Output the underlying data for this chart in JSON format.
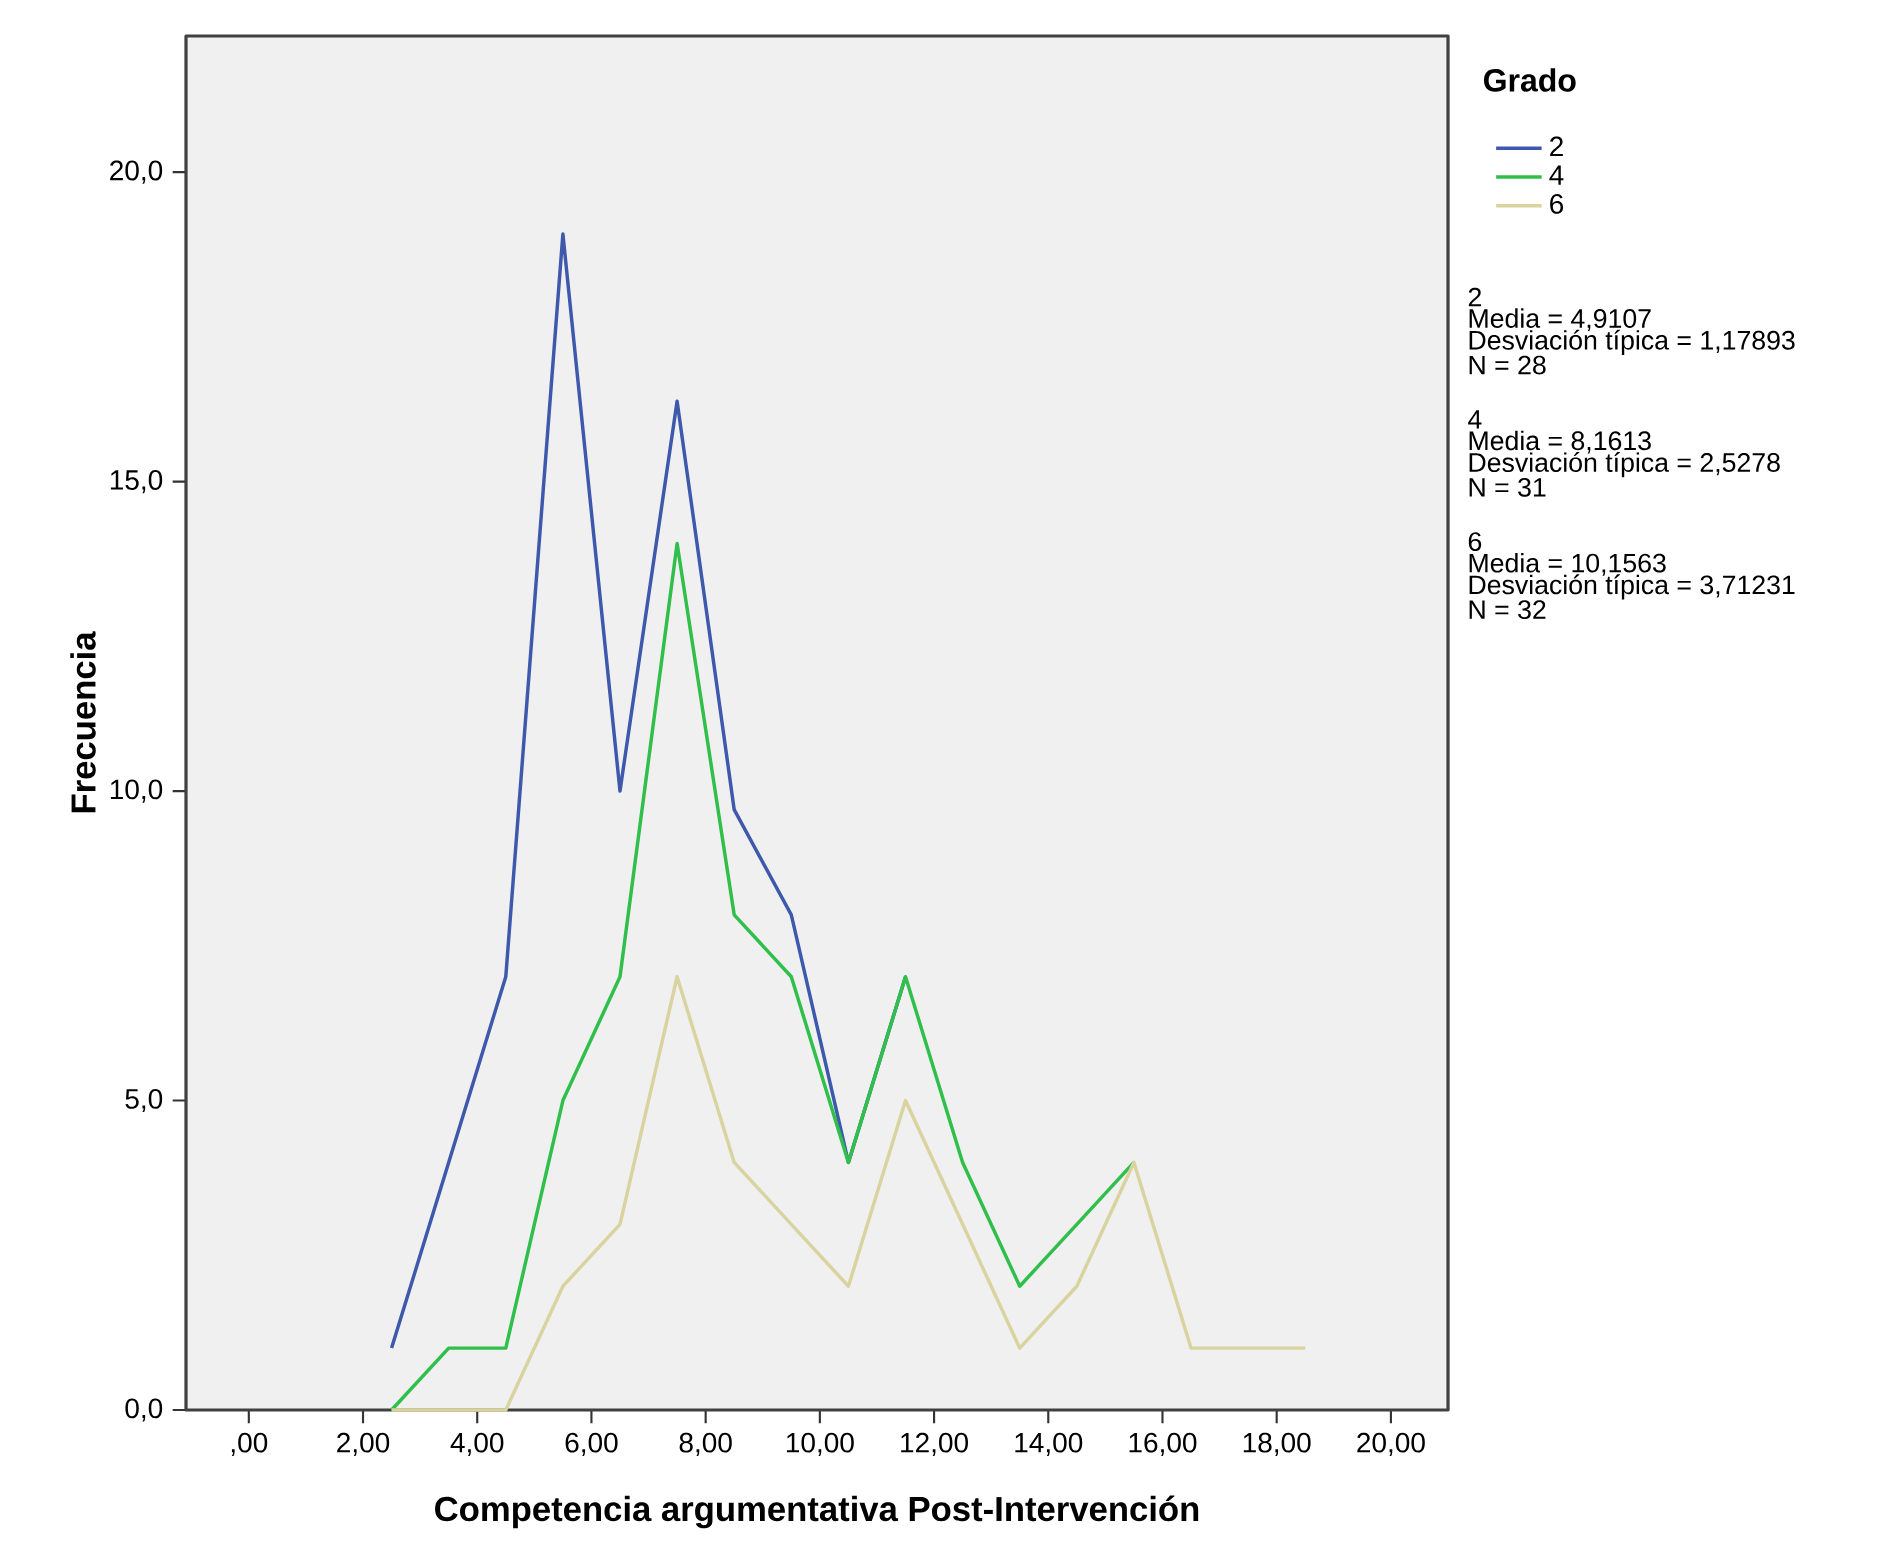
{
  "chart_data": {
    "type": "line",
    "xlabel": "Competencia argumentativa Post-Intervención",
    "ylabel": "Frecuencia",
    "legend_title": "Grado",
    "x": [
      2.5,
      3.5,
      4.5,
      5.5,
      6.5,
      7.5,
      8.5,
      9.5,
      10.5,
      11.5,
      12.5,
      13.5,
      14.5,
      15.5,
      16.5,
      17.5,
      18.5
    ],
    "series": [
      {
        "name": "2",
        "color": "#3e58ac",
        "values": [
          1,
          4,
          7,
          19,
          10,
          16.3,
          9.7,
          8,
          4,
          7,
          null,
          null,
          null,
          null,
          null,
          null,
          null
        ]
      },
      {
        "name": "4",
        "color": "#2fbf4a",
        "values": [
          0,
          1,
          1,
          5,
          7,
          14,
          8,
          7,
          4,
          7,
          4,
          2,
          3,
          4,
          null,
          null,
          null
        ]
      },
      {
        "name": "6",
        "color": "#d9d3a0",
        "values": [
          0,
          0,
          0,
          2,
          3,
          7,
          4,
          3,
          2,
          5,
          3,
          1,
          2,
          4,
          1,
          1,
          1
        ]
      }
    ],
    "xlim": [
      -1.1,
      21.0
    ],
    "ylim": [
      0,
      22.2
    ],
    "xticks": [
      {
        "value": 0,
        "label": ",00"
      },
      {
        "value": 2,
        "label": "2,00"
      },
      {
        "value": 4,
        "label": "4,00"
      },
      {
        "value": 6,
        "label": "6,00"
      },
      {
        "value": 8,
        "label": "8,00"
      },
      {
        "value": 10,
        "label": "10,00"
      },
      {
        "value": 12,
        "label": "12,00"
      },
      {
        "value": 14,
        "label": "14,00"
      },
      {
        "value": 16,
        "label": "16,00"
      },
      {
        "value": 18,
        "label": "18,00"
      },
      {
        "value": 20,
        "label": "20,00"
      }
    ],
    "yticks": [
      {
        "value": 0,
        "label": "0,0"
      },
      {
        "value": 5,
        "label": "5,0"
      },
      {
        "value": 10,
        "label": "10,0"
      },
      {
        "value": 15,
        "label": "15,0"
      },
      {
        "value": 20,
        "label": "20,0"
      }
    ],
    "legend": "top right",
    "grid": false,
    "marker": "none",
    "line_style": "solid",
    "annotations": [
      "2",
      "Media = 4,9107",
      "Desviación típica = 1,17893",
      "N = 28",
      "4",
      "Media = 8,1613",
      "Desviación típica = 2,5278",
      "N = 31",
      "6",
      "Media = 10,1563",
      "Desviación típica = 3,71231",
      "N = 32"
    ]
  }
}
